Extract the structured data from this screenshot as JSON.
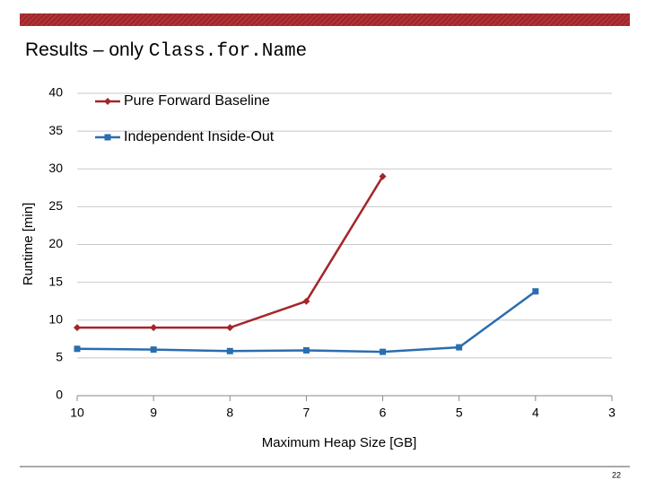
{
  "title_prefix": "Results – only ",
  "title_code": "Class.for.Name",
  "page_number": "22",
  "chart_data": {
    "type": "line",
    "x_label": "Maximum Heap Size [GB]",
    "y_label": "Runtime [min]",
    "x": [
      10,
      9,
      8,
      7,
      6,
      5,
      4,
      3
    ],
    "xlim": [
      10,
      3
    ],
    "xticks": [
      10,
      9,
      8,
      7,
      6,
      5,
      4,
      3
    ],
    "ylim": [
      0,
      40
    ],
    "yticks": [
      0,
      5,
      10,
      15,
      20,
      25,
      30,
      35,
      40
    ],
    "grid": true,
    "legend": "top-left",
    "series": [
      {
        "name": "Pure Forward Baseline",
        "color": "#a3262a",
        "marker": "diamond",
        "values": [
          9,
          9,
          9,
          12.5,
          29,
          null,
          null,
          null
        ]
      },
      {
        "name": "Independent Inside-Out",
        "color": "#2a6db0",
        "marker": "square",
        "values": [
          6.2,
          6.1,
          5.9,
          6,
          5.8,
          6.4,
          13.8,
          null
        ]
      }
    ]
  }
}
